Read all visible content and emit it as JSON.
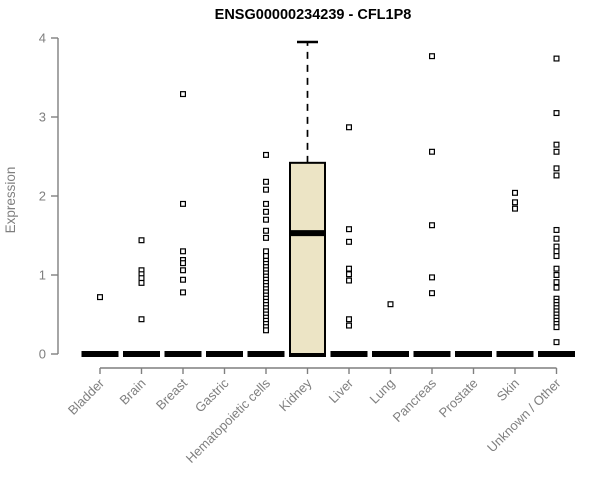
{
  "chart_data": {
    "type": "boxplot",
    "title": "ENSG00000234239 - CFL1P8",
    "ylabel": "Expression",
    "xlabel": "",
    "ylim": [
      0,
      4
    ],
    "yticks": [
      0,
      1,
      2,
      3,
      4
    ],
    "grid": false,
    "legend": "none",
    "categories": [
      "Bladder",
      "Brain",
      "Breast",
      "Gastric",
      "Hematopoietic cells",
      "Kidney",
      "Liver",
      "Lung",
      "Pancreas",
      "Prostate",
      "Skin",
      "Unknown / Other"
    ],
    "series": [
      {
        "category": "Bladder",
        "zero_bar": true,
        "median": 0,
        "points": [
          0.72
        ]
      },
      {
        "category": "Brain",
        "zero_bar": true,
        "median": 0,
        "points": [
          1.44,
          1.06,
          1.01,
          0.96,
          0.9,
          0.44
        ]
      },
      {
        "category": "Breast",
        "zero_bar": true,
        "median": 0,
        "points": [
          3.29,
          1.9,
          1.3,
          1.19,
          1.15,
          1.06,
          0.94,
          0.78
        ]
      },
      {
        "category": "Gastric",
        "zero_bar": true,
        "median": 0,
        "points": []
      },
      {
        "category": "Hematopoietic cells",
        "zero_bar": true,
        "median": 0,
        "points": [
          2.52,
          2.18,
          2.08,
          1.9,
          1.8,
          1.7,
          1.56,
          1.47,
          1.3,
          1.24,
          1.18,
          1.14,
          1.1,
          1.06,
          1.02,
          0.98,
          0.94,
          0.9,
          0.86,
          0.82,
          0.78,
          0.74,
          0.7,
          0.66,
          0.62,
          0.58,
          0.54,
          0.5,
          0.46,
          0.42,
          0.38,
          0.34,
          0.3
        ]
      },
      {
        "category": "Kidney",
        "zero_bar": true,
        "median": 0,
        "points": [],
        "box": {
          "whisker_low": 0,
          "q1": 0,
          "median": 1.53,
          "q3": 2.42,
          "whisker_high": 3.95
        }
      },
      {
        "category": "Liver",
        "zero_bar": true,
        "median": 0,
        "points": [
          2.87,
          1.58,
          1.42,
          1.08,
          1.01,
          0.93,
          0.44,
          0.36
        ]
      },
      {
        "category": "Lung",
        "zero_bar": true,
        "median": 0,
        "points": [
          0.63
        ]
      },
      {
        "category": "Pancreas",
        "zero_bar": true,
        "median": 0,
        "points": [
          3.77,
          2.56,
          1.63,
          0.97,
          0.77
        ]
      },
      {
        "category": "Prostate",
        "zero_bar": true,
        "median": 0,
        "points": []
      },
      {
        "category": "Skin",
        "zero_bar": true,
        "median": 0,
        "points": [
          2.04,
          1.92,
          1.84
        ]
      },
      {
        "category": "Unknown / Other",
        "zero_bar": true,
        "median": 0,
        "points": [
          3.74,
          3.05,
          2.65,
          2.56,
          2.35,
          2.26,
          1.57,
          1.46,
          1.36,
          1.3,
          1.24,
          1.08,
          1.0,
          0.91,
          0.84,
          0.7,
          0.66,
          0.62,
          0.58,
          0.54,
          0.5,
          0.46,
          0.42,
          0.38,
          0.34,
          0.15
        ]
      }
    ],
    "colors": {
      "box_fill": "#ece4c5",
      "box_stroke": "#000000",
      "point_stroke": "#000000",
      "point_fill": "#ffffff",
      "median_color": "#000000",
      "axis_color": "#7f7f7f",
      "label_color": "#7f7f7f",
      "title_color": "#000000",
      "background": "#ffffff"
    },
    "layout": {
      "legend_position": "none",
      "x_label_rotation_deg": 45
    }
  }
}
